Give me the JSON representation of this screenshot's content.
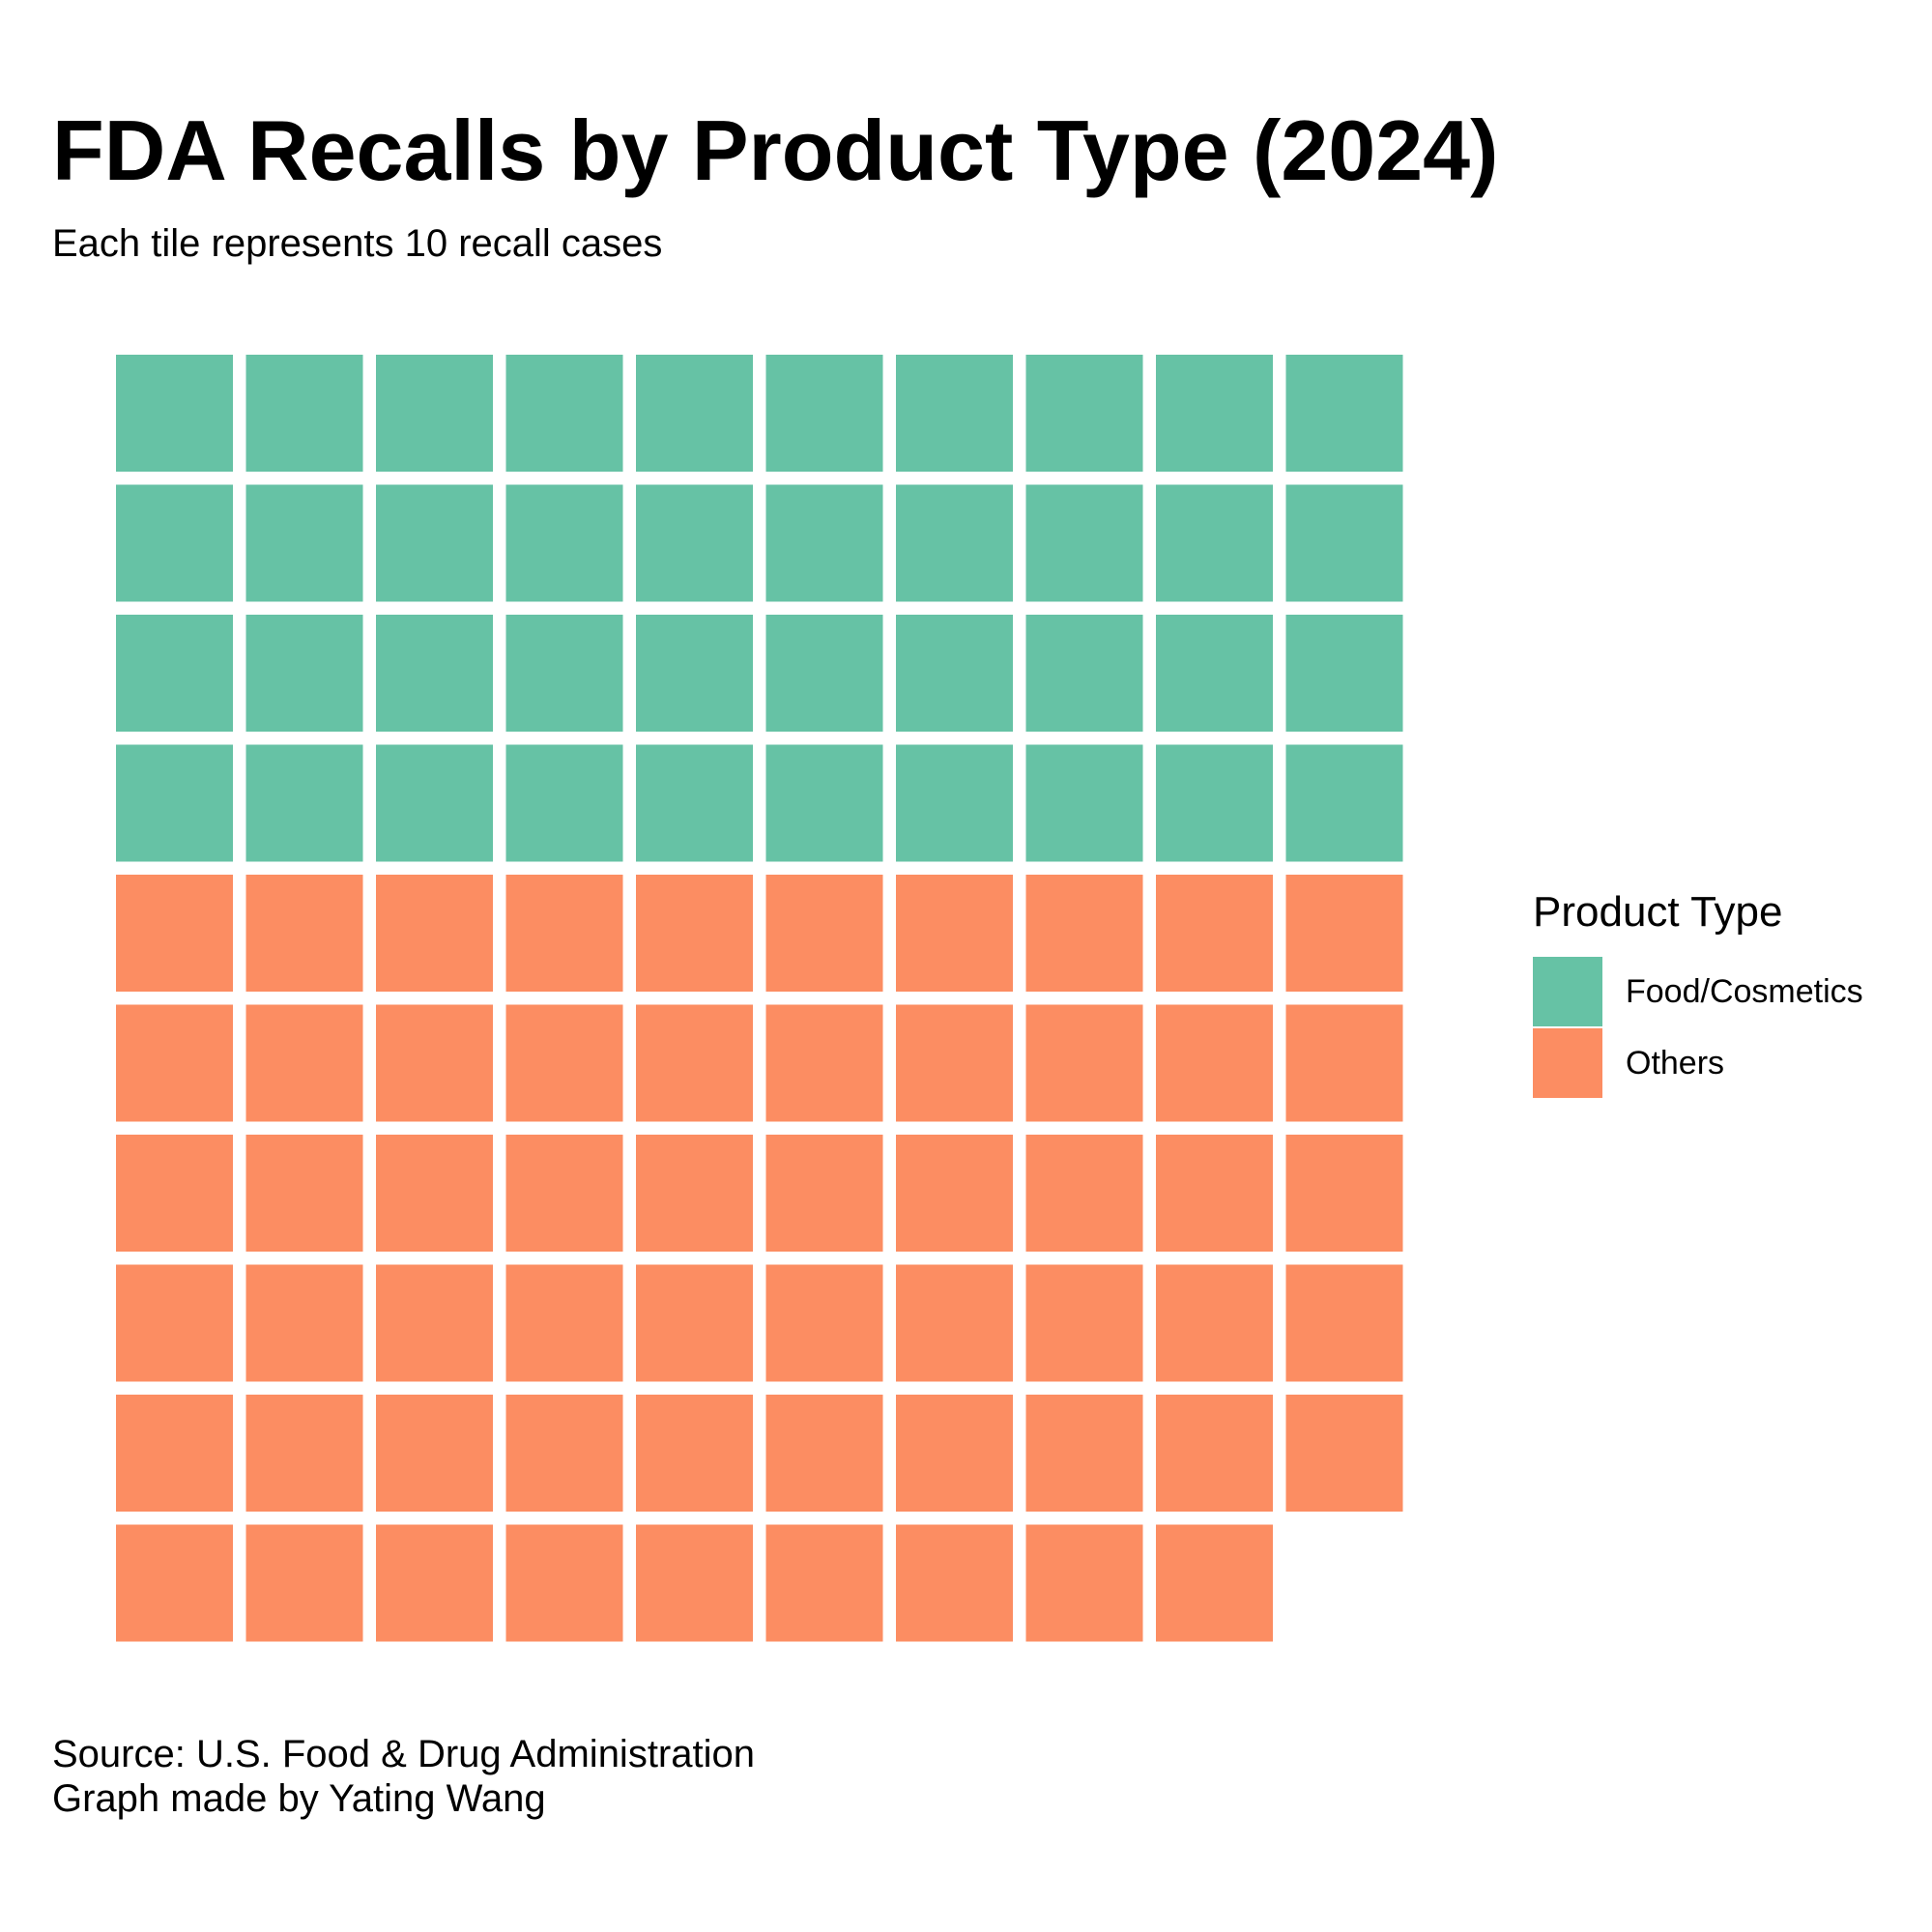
{
  "title": "FDA Recalls by Product Type (2024)",
  "subtitle": "Each tile represents 10 recall cases",
  "caption": {
    "source": "Source: U.S. Food & Drug Administration",
    "credit": "Graph made by Yating Wang"
  },
  "legend": {
    "title": "Product Type",
    "placement": "right"
  },
  "colors": {
    "food_cosmetics": "#66c2a5",
    "others": "#fc8d62"
  },
  "chart_data": {
    "type": "waffle",
    "unit_value": 10,
    "grid_columns": 10,
    "grid": false,
    "categories": [
      "Food/Cosmetics",
      "Others"
    ],
    "tiles": [
      40,
      59
    ],
    "values": [
      400,
      590
    ],
    "series": [
      {
        "name": "Food/Cosmetics",
        "tiles": 40,
        "color": "#66c2a5"
      },
      {
        "name": "Others",
        "tiles": 59,
        "color": "#fc8d62"
      }
    ]
  }
}
